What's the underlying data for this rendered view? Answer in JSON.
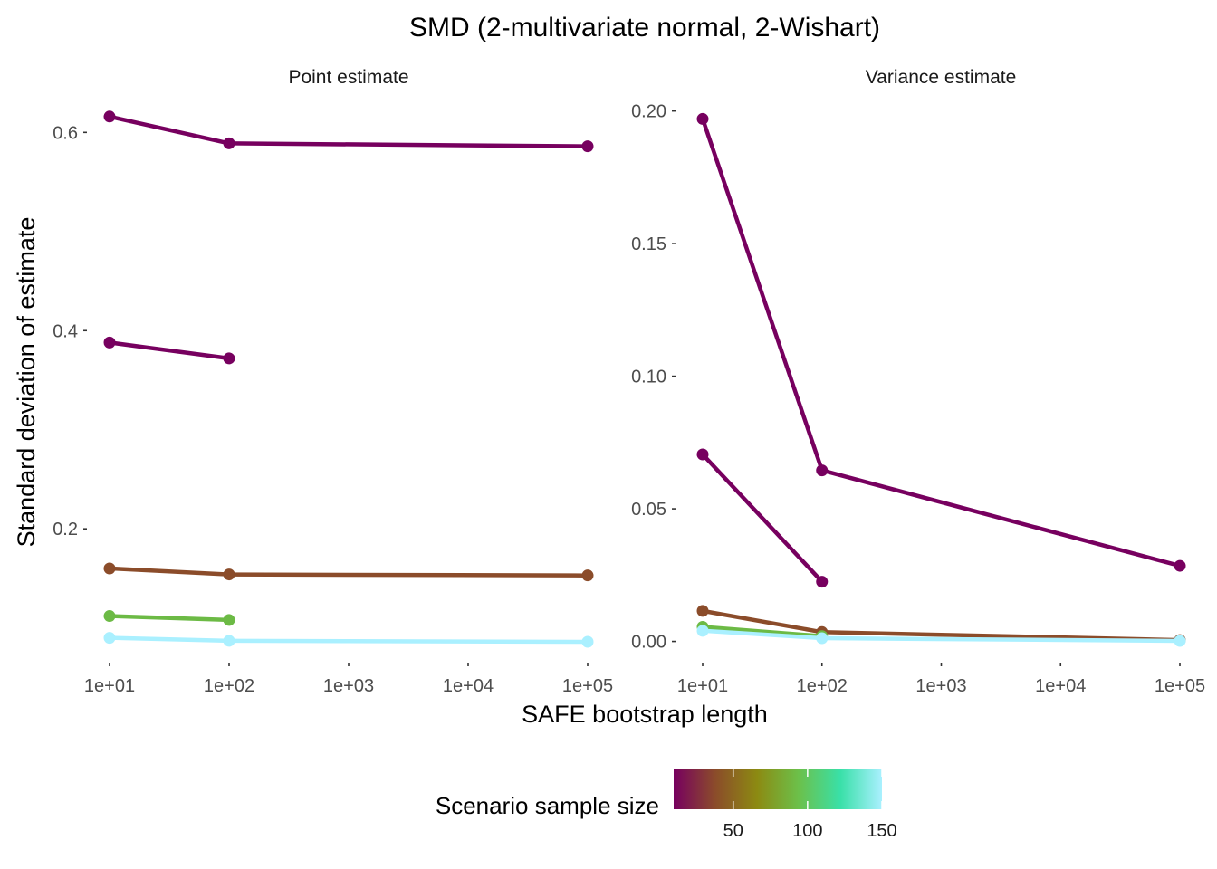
{
  "chart_data": {
    "type": "line",
    "title": "SMD (2-multivariate normal, 2-Wishart)",
    "xlabel": "SAFE bootstrap length",
    "ylabel": "Standard deviation of estimate",
    "x_scale": "log10",
    "x_ticks": [
      "1e+01",
      "1e+02",
      "1e+03",
      "1e+04",
      "1e+05"
    ],
    "x_tick_values": [
      10,
      100,
      1000,
      10000,
      100000
    ],
    "legend": {
      "title": "Scenario sample size",
      "position": "bottom",
      "gradient": [
        "#77005f",
        "#8b4c2a",
        "#8c8a12",
        "#6cc04a",
        "#39e0a8",
        "#aaf0ff"
      ],
      "range": [
        10,
        150
      ],
      "ticks": [
        "50",
        "100",
        "150"
      ],
      "tick_values": [
        50,
        100,
        150
      ]
    },
    "panels": [
      {
        "strip": "Point estimate",
        "ylim": [
          0.065,
          0.635
        ],
        "y_ticks": [
          "0.2",
          "0.4",
          "0.6"
        ],
        "y_tick_values": [
          0.2,
          0.4,
          0.6
        ],
        "series": [
          {
            "color": "#77005f",
            "x": [
              10,
              100,
              100000
            ],
            "y": [
              0.616,
              0.589,
              0.586
            ]
          },
          {
            "color": "#77005f",
            "x": [
              10,
              100
            ],
            "y": [
              0.388,
              0.372
            ]
          },
          {
            "color": "#8b4c2a",
            "x": [
              10,
              100,
              100000
            ],
            "y": [
              0.16,
              0.154,
              0.153
            ]
          },
          {
            "color": "#6cba45",
            "x": [
              10,
              100
            ],
            "y": [
              0.112,
              0.108
            ]
          },
          {
            "color": "#aaf0ff",
            "x": [
              10,
              100,
              100000
            ],
            "y": [
              0.09,
              0.087,
              0.086
            ]
          }
        ]
      },
      {
        "strip": "Variance estimate",
        "ylim": [
          -0.008,
          0.205
        ],
        "y_ticks": [
          "0.00",
          "0.05",
          "0.10",
          "0.15",
          "0.20"
        ],
        "y_tick_values": [
          0,
          0.05,
          0.1,
          0.15,
          0.2
        ],
        "series": [
          {
            "color": "#77005f",
            "x": [
              10,
              100,
              100000
            ],
            "y": [
              0.197,
              0.0645,
              0.0285
            ]
          },
          {
            "color": "#77005f",
            "x": [
              10,
              100
            ],
            "y": [
              0.0705,
              0.0225
            ]
          },
          {
            "color": "#8b4c2a",
            "x": [
              10,
              100,
              100000
            ],
            "y": [
              0.0115,
              0.0035,
              0.0005
            ]
          },
          {
            "color": "#6cba45",
            "x": [
              10,
              100
            ],
            "y": [
              0.0055,
              0.002
            ]
          },
          {
            "color": "#aaf0ff",
            "x": [
              10,
              100,
              100000
            ],
            "y": [
              0.004,
              0.0012,
              0.0002
            ]
          }
        ]
      }
    ]
  }
}
